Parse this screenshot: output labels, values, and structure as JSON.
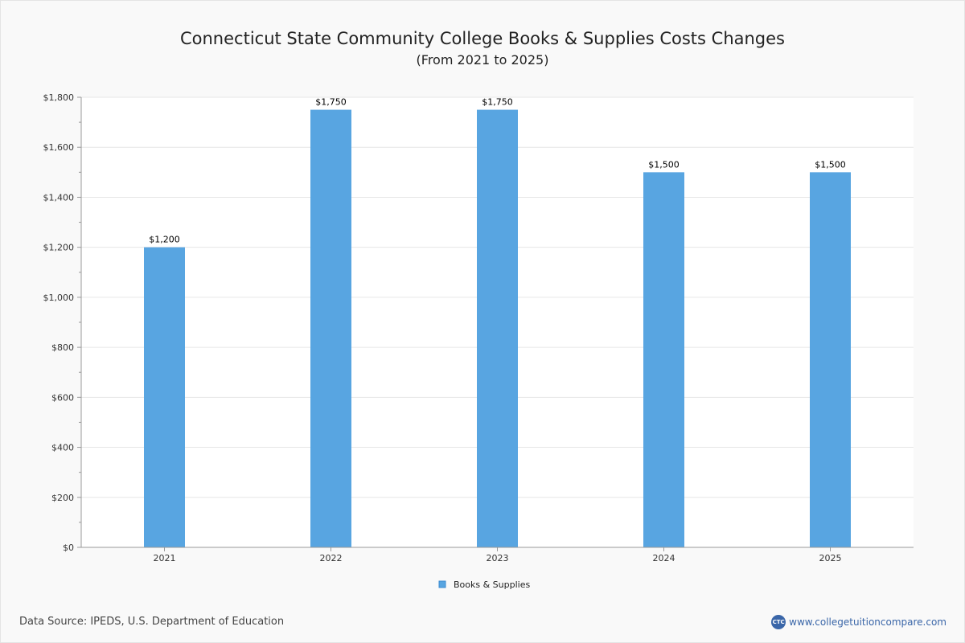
{
  "header": {
    "title": "Connecticut State Community College Books & Supplies Costs Changes",
    "subtitle": "(From 2021 to 2025)"
  },
  "chart_data": {
    "type": "bar",
    "title": "Connecticut State Community College Books & Supplies Costs Changes",
    "subtitle": "(From 2021 to 2025)",
    "categories": [
      "2021",
      "2022",
      "2023",
      "2024",
      "2025"
    ],
    "series": [
      {
        "name": "Books & Supplies",
        "values": [
          1200,
          1750,
          1750,
          1500,
          1500
        ],
        "labels": [
          "$1,200",
          "$1,750",
          "$1,750",
          "$1,500",
          "$1,500"
        ],
        "color": "#58a5e1"
      }
    ],
    "ylim": [
      0,
      1800
    ],
    "yticks": [
      0,
      200,
      400,
      600,
      800,
      1000,
      1200,
      1400,
      1600,
      1800
    ],
    "ytick_labels": [
      "$0",
      "$200",
      "$400",
      "$600",
      "$800",
      "$1,000",
      "$1,200",
      "$1,400",
      "$1,600",
      "$1,800"
    ],
    "xlabel": "",
    "ylabel": "",
    "grid": true,
    "legend": "bottom-center"
  },
  "footer": {
    "source": "Data Source: IPEDS, U.S. Department of Education",
    "brand_logo_text": "CTC",
    "brand_url": "www.collegetuitioncompare.com"
  },
  "colors": {
    "bar": "#58a5e1",
    "grid": "#e6e6e6",
    "axis": "#999999",
    "brand": "#3a66a8"
  }
}
